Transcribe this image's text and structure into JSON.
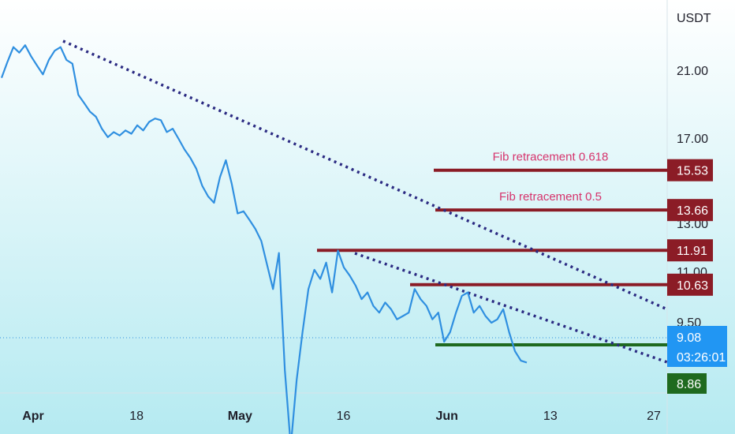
{
  "chart_data": {
    "type": "line",
    "currency": "USDT",
    "y_ticks": [
      "21.00",
      "17.00",
      "13.00",
      "11.00",
      "9.50"
    ],
    "x_ticks": [
      {
        "label": "Apr",
        "bold": true
      },
      {
        "label": "18",
        "bold": false
      },
      {
        "label": "May",
        "bold": true
      },
      {
        "label": "16",
        "bold": false
      },
      {
        "label": "Jun",
        "bold": true
      },
      {
        "label": "13",
        "bold": false
      },
      {
        "label": "27",
        "bold": false
      }
    ],
    "series": [
      {
        "values": [
          20.6,
          21.5,
          22.3,
          22.0,
          22.4,
          21.8,
          21.3,
          20.8,
          21.6,
          22.1,
          22.3,
          21.6,
          21.4,
          19.6,
          19.1,
          18.6,
          18.3,
          17.6,
          17.1,
          17.4,
          17.2,
          17.5,
          17.3,
          17.8,
          17.5,
          18.0,
          18.2,
          18.1,
          17.4,
          17.6,
          17.0,
          16.5,
          16.1,
          15.6,
          14.8,
          14.3,
          14.0,
          15.2,
          16.0,
          14.9,
          13.5,
          13.6,
          13.2,
          12.8,
          12.3,
          11.3,
          10.5,
          11.8,
          9.0,
          8.2,
          8.9,
          9.4,
          10.5,
          11.1,
          10.8,
          11.4,
          10.4,
          11.9,
          11.2,
          10.9,
          10.6,
          10.2,
          10.4,
          10.0,
          9.8,
          10.1,
          9.9,
          9.6,
          9.7,
          9.8,
          10.5,
          10.2,
          10.0,
          9.6,
          9.8,
          9.3,
          9.4,
          9.8,
          10.3,
          10.4,
          9.8,
          10.0,
          9.7,
          9.5,
          9.6,
          9.9,
          9.4,
          9.2,
          9.1,
          9.08
        ],
        "color": "#2f8fe0"
      }
    ],
    "current_price": "9.08",
    "countdown": "03:26:01",
    "support_label": "8.86",
    "levels": [
      {
        "price": "15.53",
        "label": "Fib retracement 0.618"
      },
      {
        "price": "13.66",
        "label": "Fib retracement 0.5"
      },
      {
        "price": "11.91",
        "label": ""
      },
      {
        "price": "10.63",
        "label": ""
      }
    ],
    "colors": {
      "background_top": "#ffffff",
      "background_bottom": "#b5eaf1",
      "price_line": "#2f8fe0",
      "trendline": "#2b2a82",
      "level_line": "#8b1c26",
      "support_line": "#1f6a1f",
      "current_badge": "#2196f3",
      "fib_text": "#d6336c"
    }
  }
}
